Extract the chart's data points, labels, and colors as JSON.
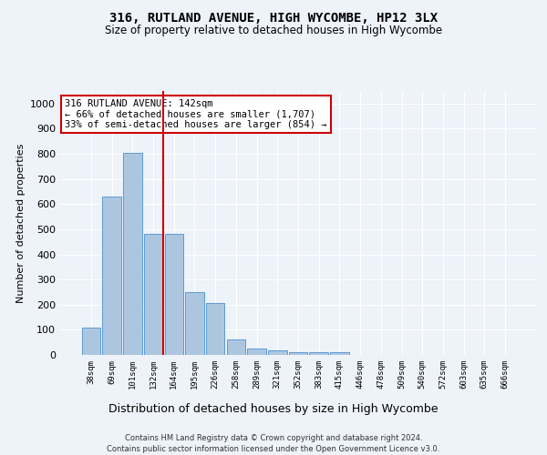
{
  "title": "316, RUTLAND AVENUE, HIGH WYCOMBE, HP12 3LX",
  "subtitle": "Size of property relative to detached houses in High Wycombe",
  "xlabel": "Distribution of detached houses by size in High Wycombe",
  "ylabel": "Number of detached properties",
  "bar_labels": [
    "38sqm",
    "69sqm",
    "101sqm",
    "132sqm",
    "164sqm",
    "195sqm",
    "226sqm",
    "258sqm",
    "289sqm",
    "321sqm",
    "352sqm",
    "383sqm",
    "415sqm",
    "446sqm",
    "478sqm",
    "509sqm",
    "540sqm",
    "572sqm",
    "603sqm",
    "635sqm",
    "666sqm"
  ],
  "bar_values": [
    110,
    630,
    805,
    480,
    480,
    250,
    207,
    60,
    27,
    18,
    12,
    12,
    12,
    0,
    0,
    0,
    0,
    0,
    0,
    0,
    0
  ],
  "bar_color": "#adc6e0",
  "bar_edge_color": "#5b9bd5",
  "vline_color": "#cc0000",
  "ylim": [
    0,
    1050
  ],
  "yticks": [
    0,
    100,
    200,
    300,
    400,
    500,
    600,
    700,
    800,
    900,
    1000
  ],
  "annotation_text": "316 RUTLAND AVENUE: 142sqm\n← 66% of detached houses are smaller (1,707)\n33% of semi-detached houses are larger (854) →",
  "annotation_box_color": "#ffffff",
  "annotation_box_edge": "#cc0000",
  "footer_line1": "Contains HM Land Registry data © Crown copyright and database right 2024.",
  "footer_line2": "Contains public sector information licensed under the Open Government Licence v3.0.",
  "background_color": "#eef2f9",
  "plot_bg_color": "#eef2f9"
}
